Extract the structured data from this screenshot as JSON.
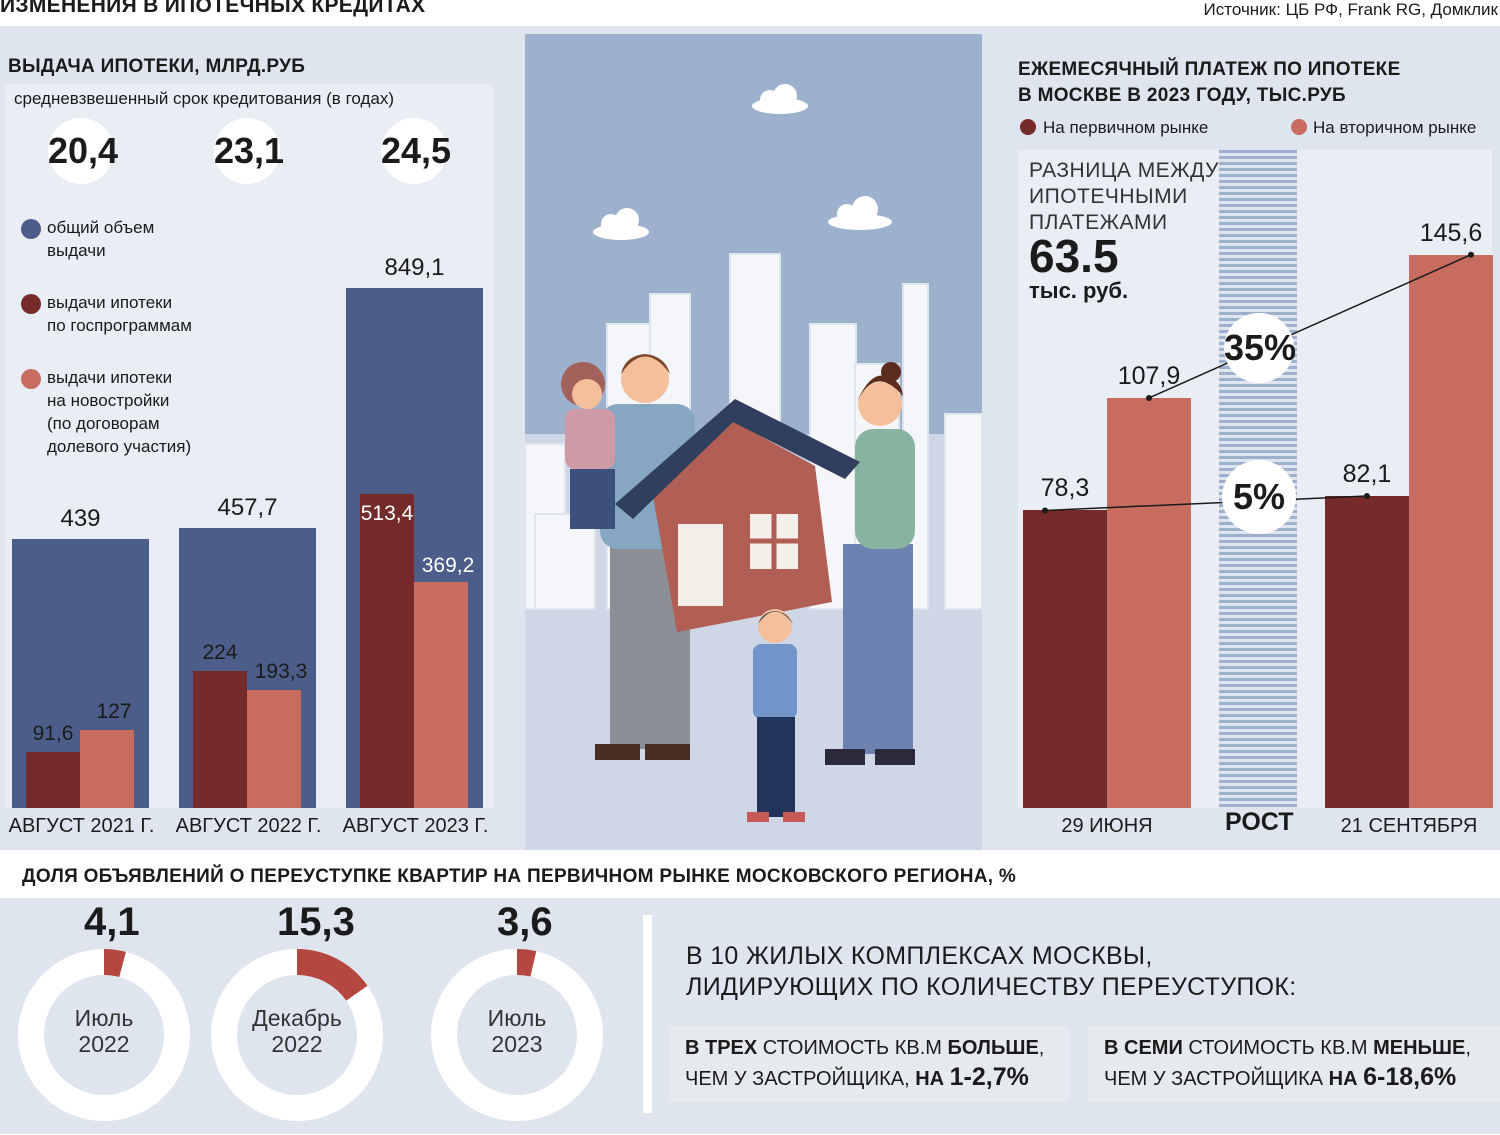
{
  "header": {
    "title": "ИЗМЕНЕНИЯ В ИПОТЕЧНЫХ КРЕДИТАХ",
    "source": "Источник: ЦБ РФ, Frank RG, Домклик"
  },
  "left": {
    "title": "ВЫДАЧА ИПОТЕКИ, МЛРД.РУБ",
    "subtitle": "средневзвешенный срок кредитования (в годах)",
    "terms": [
      "20,4",
      "23,1",
      "24,5"
    ],
    "legend": [
      {
        "label_l1": "общий объем",
        "label_l2": "выдачи",
        "color": "#4d5d89"
      },
      {
        "label_l1": "выдачи ипотеки",
        "label_l2": "по госпрограммам",
        "color": "#762b2b"
      },
      {
        "label_l1": "выдачи ипотеки",
        "label_l2": "на новостройки",
        "label_l3": "(по договорам",
        "label_l4": "долевого участия)",
        "color": "#c76c5f"
      }
    ]
  },
  "chart_data": [
    {
      "type": "bar",
      "title": "ВЫДАЧА ИПОТЕКИ, МЛРД.РУБ",
      "categories": [
        "АВГУСТ 2021 Г.",
        "АВГУСТ 2022 Г.",
        "АВГУСТ 2023 Г."
      ],
      "series": [
        {
          "name": "общий объем выдачи",
          "values": [
            439,
            457.7,
            849.1
          ],
          "labels": [
            "439",
            "457,7",
            "849,1"
          ],
          "color": "#4d5d89"
        },
        {
          "name": "выдачи ипотеки по госпрограммам",
          "values": [
            91.6,
            224,
            513.4
          ],
          "labels": [
            "91,6",
            "224",
            "513,4"
          ],
          "color": "#762b2b"
        },
        {
          "name": "выдачи ипотеки на новостройки (по договорам долевого участия)",
          "values": [
            127,
            193.3,
            369.2
          ],
          "labels": [
            "127",
            "193,3",
            "369,2"
          ],
          "color": "#c76c5f"
        }
      ]
    },
    {
      "type": "bar",
      "title": "ЕЖЕМЕСЯЧНЫЙ ПЛАТЕЖ ПО ИПОТЕКЕ В МОСКВЕ В 2023 ГОДУ, ТЫС.РУБ",
      "categories": [
        "29 ИЮНЯ",
        "21 СЕНТЯБРЯ"
      ],
      "series": [
        {
          "name": "На первичном рынке",
          "values": [
            78.3,
            82.1
          ],
          "labels": [
            "78,3",
            "82,1"
          ],
          "color": "#762b2b"
        },
        {
          "name": "На вторичном рынке",
          "values": [
            107.9,
            145.6
          ],
          "labels": [
            "107,9",
            "145,6"
          ],
          "color": "#c76c5f"
        }
      ],
      "growth": {
        "label": "РОСТ",
        "primary": "5%",
        "secondary": "35%"
      }
    },
    {
      "type": "pie",
      "title": "ДОЛЯ ОБЪЯВЛЕНИЙ О ПЕРЕУСТУПКЕ КВАРТИР НА ПЕРВИЧНОМ РЫНКЕ МОСКОВСКОГО РЕГИОНА, %",
      "items": [
        {
          "value": 4.1,
          "value_label": "4,1",
          "label_l1": "Июль",
          "label_l2": "2022"
        },
        {
          "value": 15.3,
          "value_label": "15,3",
          "label_l1": "Декабрь",
          "label_l2": "2022"
        },
        {
          "value": 3.6,
          "value_label": "3,6",
          "label_l1": "Июль",
          "label_l2": "2023"
        }
      ]
    }
  ],
  "right": {
    "title_l1": "ЕЖЕМЕСЯЧНЫЙ ПЛАТЕЖ ПО ИПОТЕКЕ",
    "title_l2": "В МОСКВЕ В 2023 ГОДУ, ТЫС.РУБ",
    "diff_l1": "РАЗНИЦА МЕЖДУ",
    "diff_l2": "ИПОТЕЧНЫМИ",
    "diff_l3": "ПЛАТЕЖАМИ",
    "diff_value": "63.5",
    "diff_unit": "тыс. руб."
  },
  "bottom": {
    "title": "ДОЛЯ ОБЪЯВЛЕНИЙ О ПЕРЕУСТУПКЕ КВАРТИР НА ПЕРВИЧНОМ РЫНКЕ МОСКОВСКОГО РЕГИОНА, %",
    "headline_l1": "В 10 ЖИЛЫХ КОМПЛЕКСАХ МОСКВЫ,",
    "headline_l2": "ЛИДИРУЮЩИХ ПО КОЛИЧЕСТВУ ПЕРЕУСТУПОК:",
    "box1": {
      "b1": "В ТРЕХ",
      "t1": " СТОИМОСТЬ КВ.М ",
      "b2": "БОЛЬШЕ",
      "t2": ",",
      "t3": "ЧЕМ У ЗАСТРОЙЩИКА, ",
      "b3": "НА",
      "b4": "1-2,7%"
    },
    "box2": {
      "b1": "В СЕМИ",
      "t1": " СТОИМОСТЬ КВ.М ",
      "b2": "МЕНЬШЕ",
      "t2": ",",
      "t3": "ЧЕМ У ЗАСТРОЙЩИКА ",
      "b3": "НА",
      "b4": "6-18,6%"
    }
  },
  "colors": {
    "panel": "#dfe5ef",
    "navy": "#4d5d89",
    "maroon": "#762b2b",
    "salmon": "#c76c5f",
    "sky": "#9db0cc"
  }
}
